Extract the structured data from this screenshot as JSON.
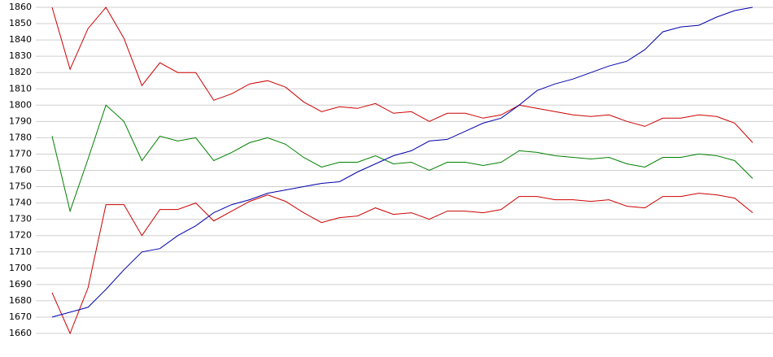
{
  "chart_data": {
    "type": "line",
    "categories": [
      null,
      null,
      null,
      null,
      null,
      null,
      null,
      null,
      null,
      null,
      null,
      null,
      null,
      null,
      null,
      null,
      null,
      null,
      null,
      null,
      null,
      null,
      null,
      null,
      null,
      null,
      null,
      null,
      null,
      null,
      null,
      null,
      null,
      null,
      null,
      null,
      null,
      null,
      null,
      null
    ],
    "series": [
      {
        "color": "#cc0000",
        "values": [
          1860,
          1822,
          1847,
          1860,
          1841,
          1812,
          1826,
          1820,
          1820,
          1803,
          1807,
          1813,
          1815,
          1811,
          1802,
          1796,
          1799,
          1798,
          1801,
          1795,
          1796,
          1790,
          1795,
          1795,
          1792,
          1794,
          1800,
          1798,
          1796,
          1794,
          1793,
          1794,
          1790,
          1787,
          1792,
          1792,
          1794,
          1793,
          1789,
          1777
        ]
      },
      {
        "color": "#008000",
        "values": [
          1781,
          1735,
          1767,
          1800,
          1790,
          1766,
          1781,
          1778,
          1780,
          1766,
          1771,
          1777,
          1780,
          1776,
          1768,
          1762,
          1765,
          1765,
          1769,
          1764,
          1765,
          1760,
          1765,
          1765,
          1763,
          1765,
          1772,
          1771,
          1769,
          1768,
          1767,
          1768,
          1764,
          1762,
          1768,
          1768,
          1770,
          1769,
          1766,
          1755
        ]
      },
      {
        "color": "#cc0000",
        "values": [
          1685,
          1660,
          1688,
          1739,
          1739,
          1720,
          1736,
          1736,
          1740,
          1729,
          1735,
          1741,
          1745,
          1741,
          1734,
          1728,
          1731,
          1732,
          1737,
          1733,
          1734,
          1730,
          1735,
          1735,
          1734,
          1736,
          1744,
          1744,
          1742,
          1742,
          1741,
          1742,
          1738,
          1737,
          1744,
          1744,
          1746,
          1745,
          1743,
          1734
        ]
      },
      {
        "color": "#0000aa",
        "values": [
          1670,
          1673,
          1676,
          1687,
          1699,
          1710,
          1712,
          1720,
          1726,
          1734,
          1739,
          1742,
          1746,
          1748,
          1750,
          1752,
          1753,
          1759,
          1764,
          1769,
          1772,
          1778,
          1779,
          1784,
          1789,
          1792,
          1800,
          1809,
          1813,
          1816,
          1820,
          1824,
          1827,
          1834,
          1845,
          1848,
          1849,
          1854,
          1858,
          1860
        ]
      }
    ],
    "ylim": [
      1660,
      1860
    ],
    "yticks": [
      1660,
      1670,
      1680,
      1690,
      1700,
      1710,
      1720,
      1730,
      1740,
      1750,
      1760,
      1770,
      1780,
      1790,
      1800,
      1810,
      1820,
      1830,
      1840,
      1850,
      1860
    ],
    "grid": true
  }
}
